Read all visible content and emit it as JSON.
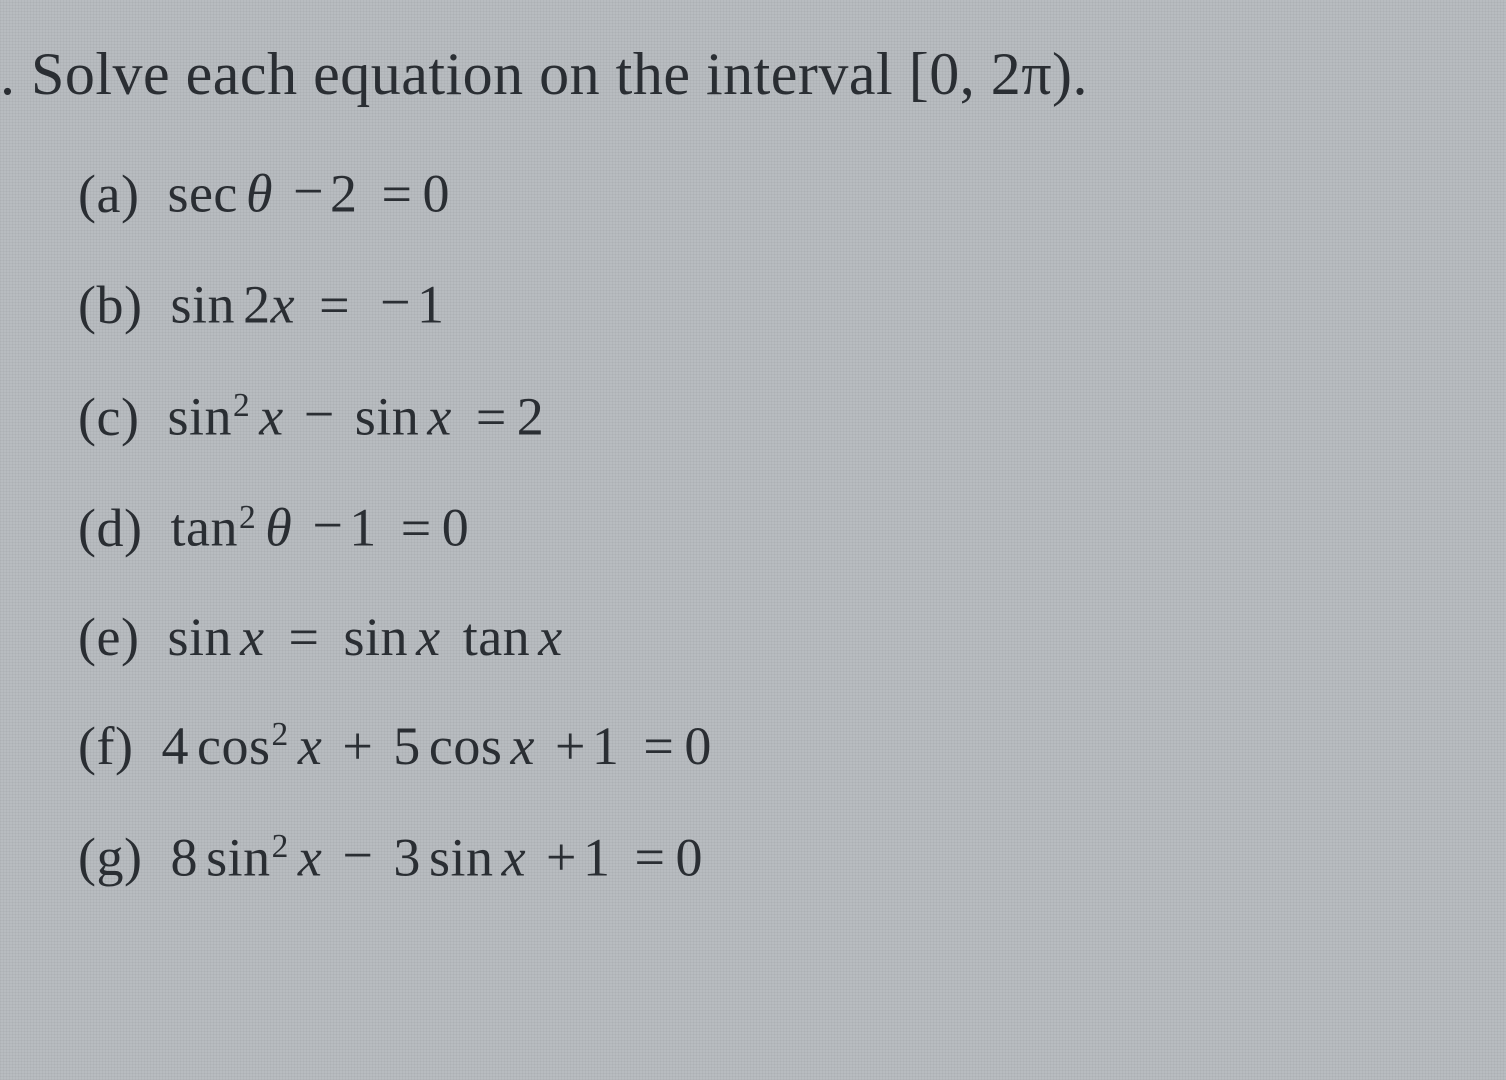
{
  "title_prefix": ". ",
  "title": "Solve each equation on the interval [0, 2π).",
  "items": [
    {
      "label": "(a)",
      "type": "sec_theta_minus_2_eq_0"
    },
    {
      "label": "(b)",
      "type": "sin_2x_eq_neg1"
    },
    {
      "label": "(c)",
      "type": "sin2_x_minus_sin_x_eq_2"
    },
    {
      "label": "(d)",
      "type": "tan2_theta_minus_1_eq_0"
    },
    {
      "label": "(e)",
      "type": "sin_x_eq_sin_x_tan_x"
    },
    {
      "label": "(f)",
      "type": "4cos2_x_plus_5cos_x_plus_1_eq_0"
    },
    {
      "label": "(g)",
      "type": "8sin2_x_minus_3sin_x_plus_1_eq_0"
    }
  ],
  "style": {
    "background_color": "#b8bcc0",
    "text_color": "#2a2e33",
    "title_fontsize": 60,
    "item_fontsize": 54,
    "item_spacing": 44,
    "left_indent": 78,
    "font_family": "Times New Roman"
  }
}
